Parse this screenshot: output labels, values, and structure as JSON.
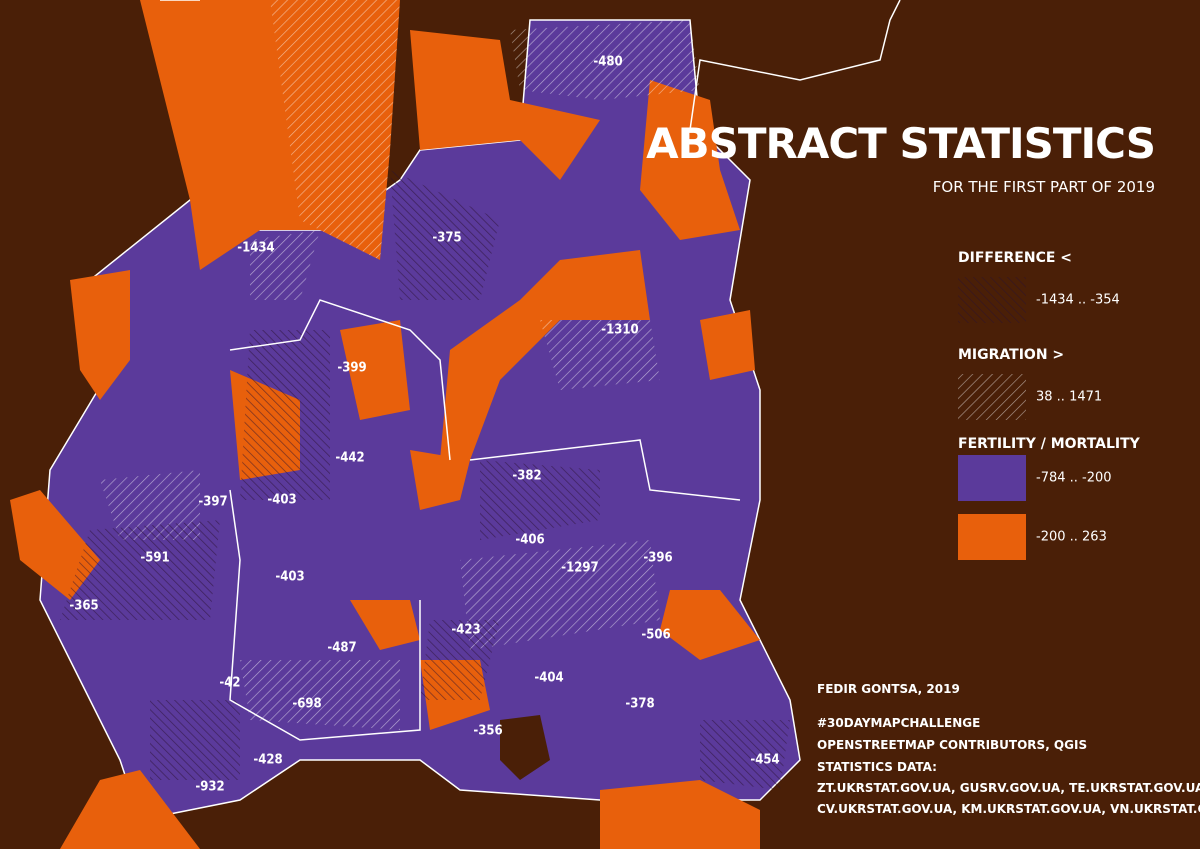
{
  "title": "ABSTRACT STATISTICS",
  "subtitle": "FOR THE FIRST PART OF 2019",
  "legend": [
    {
      "heading": "DIFFERENCE <",
      "range": "-1434 .. -354"
    },
    {
      "heading": "MIGRATION >",
      "range": "38 .. 1471"
    },
    {
      "heading": "FERTILITY / MORTALITY",
      "range": "-784 .. -200"
    },
    {
      "range": "-200 .. 263"
    }
  ],
  "map_labels": [
    -480,
    -1434,
    -375,
    -1310,
    -399,
    -442,
    -397,
    -403,
    -382,
    -591,
    -406,
    -1297,
    -396,
    -403,
    -365,
    -423,
    -506,
    -487,
    -404,
    -42,
    -698,
    -378,
    -356,
    -428,
    -454,
    -932
  ],
  "credits": [
    "FEDIR GONTSA, 2019",
    "#30DAYMAPCHALLENGE",
    "OPENSTREETMAP CONTRIBUTORS, QGIS",
    "STATISTICS DATA:",
    "ZT.UKRSTAT.GOV.UA, GUSRV.GOV.UA, TE.UKRSTAT.GOV.UA,",
    "CV.UKRSTAT.GOV.UA, KM.UKRSTAT.GOV.UA, VN.UKRSTAT.GOV.UA"
  ]
}
